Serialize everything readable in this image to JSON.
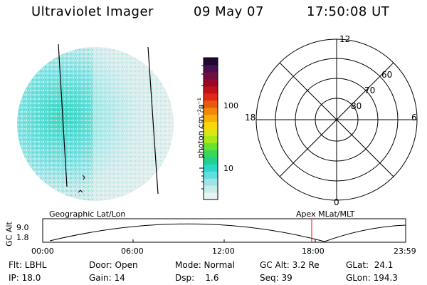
{
  "header": {
    "instrument": "Ultraviolet Imager",
    "date": "09 May 07",
    "time": "17:50:08 UT"
  },
  "colorbar": {
    "unit_label": "photon cm⁻²s⁻¹",
    "ticks": [
      "100",
      "10"
    ],
    "colors": [
      "#e8f4f4",
      "#c8ecec",
      "#9ee4e4",
      "#5ee0e0",
      "#2cd8c8",
      "#22d090",
      "#38d858",
      "#6ce030",
      "#a8e818",
      "#d8e810",
      "#f8d808",
      "#f8b008",
      "#f08808",
      "#e85810",
      "#e02818",
      "#c01018",
      "#980828",
      "#701040",
      "#481050",
      "#200830"
    ]
  },
  "polar_plot": {
    "mlt_labels": {
      "top": "12",
      "left": "18",
      "right": "6",
      "bottom": "0"
    },
    "lat_labels": [
      "60",
      "70",
      "80"
    ]
  },
  "timeline": {
    "left_label": "Geographic Lat/Lon",
    "right_label": "Apex MLat/MLT",
    "y_axis_title": "GC Alt",
    "y_ticks": [
      "9.0",
      "1.8"
    ],
    "x_ticks": [
      "00:00",
      "06:00",
      "12:00",
      "18:00",
      "23:59"
    ],
    "current_time_marker_color": "#ff0000"
  },
  "status": {
    "flt": "Flt: LBHL",
    "ip": "IP: 18.0",
    "door": "Door: Open",
    "gain": "Gain: 14",
    "mode": "Mode: Normal",
    "dsp": "Dsp:    1.6",
    "gc_alt": "GC Alt: 3.2 Re",
    "seq": "Seq: 39",
    "glat": "GLat:  24.1",
    "glon": "GLon: 194.3"
  }
}
